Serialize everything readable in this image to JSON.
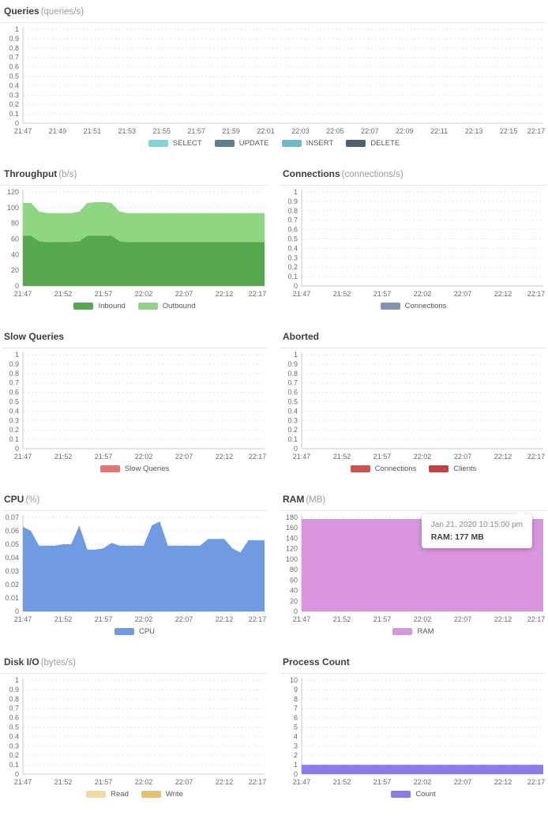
{
  "chart_data": [
    {
      "type": "area",
      "title": "Queries",
      "unit": "(queries/s)",
      "ylim": [
        0,
        1
      ],
      "yticks": [
        "0",
        "0.1",
        "0.2",
        "0.3",
        "0.4",
        "0.5",
        "0.6",
        "0.7",
        "0.8",
        "0.9",
        "1"
      ],
      "xticks": [
        "21:47",
        "21:49",
        "21:51",
        "21:53",
        "21:55",
        "21:57",
        "21:59",
        "22:01",
        "22:03",
        "22:05",
        "22:07",
        "22:09",
        "22:11",
        "22:13",
        "22:15",
        "22:17"
      ],
      "grid": true,
      "legend_position": "bottom",
      "stacked": true,
      "series": [
        {
          "name": "SELECT",
          "color": "#7fd4da",
          "values": []
        },
        {
          "name": "UPDATE",
          "color": "#5d8089",
          "values": []
        },
        {
          "name": "INSERT",
          "color": "#6cbac3",
          "values": []
        },
        {
          "name": "DELETE",
          "color": "#4c636d",
          "values": []
        }
      ]
    },
    {
      "type": "area",
      "title": "Throughput",
      "unit": "(b/s)",
      "ylim": [
        0,
        120
      ],
      "yticks": [
        "0",
        "20",
        "40",
        "60",
        "80",
        "100",
        "120"
      ],
      "xticks": [
        "21:47",
        "21:52",
        "21:57",
        "22:02",
        "22:07",
        "22:12",
        "22:17"
      ],
      "grid": true,
      "legend_position": "bottom",
      "stacked": true,
      "series": [
        {
          "name": "Inbound",
          "color": "#56a84e",
          "values": [
            64,
            64,
            57,
            56,
            56,
            56,
            56,
            57,
            64,
            64,
            64,
            64,
            57,
            56,
            56,
            56,
            56,
            56,
            56,
            56,
            56,
            56,
            56,
            56,
            56,
            56,
            56,
            56,
            56,
            56,
            56
          ]
        },
        {
          "name": "Outbound",
          "color": "#8ed681",
          "values": [
            42,
            42,
            38,
            37,
            37,
            37,
            37,
            38,
            42,
            43,
            43,
            42,
            38,
            37,
            37,
            37,
            37,
            37,
            37,
            37,
            37,
            37,
            37,
            37,
            37,
            37,
            37,
            37,
            37,
            37,
            37
          ]
        }
      ]
    },
    {
      "type": "area",
      "title": "Connections",
      "unit": "(connections/s)",
      "ylim": [
        0,
        1
      ],
      "yticks": [
        "0",
        "0.1",
        "0.2",
        "0.3",
        "0.4",
        "0.5",
        "0.6",
        "0.7",
        "0.8",
        "0.9",
        "1"
      ],
      "xticks": [
        "21:47",
        "21:52",
        "21:57",
        "22:02",
        "22:07",
        "22:12",
        "22:17"
      ],
      "grid": true,
      "legend_position": "bottom",
      "stacked": false,
      "series": [
        {
          "name": "Connections",
          "color": "#8594ae",
          "values": []
        }
      ]
    },
    {
      "type": "area",
      "title": "Slow Queries",
      "unit": "",
      "ylim": [
        0,
        1
      ],
      "yticks": [
        "0",
        "0.1",
        "0.2",
        "0.3",
        "0.4",
        "0.5",
        "0.6",
        "0.7",
        "0.8",
        "0.9",
        "1"
      ],
      "xticks": [
        "21:47",
        "21:52",
        "21:57",
        "22:02",
        "22:07",
        "22:12",
        "22:17"
      ],
      "grid": true,
      "legend_position": "bottom",
      "stacked": false,
      "series": [
        {
          "name": "Slow Queries",
          "color": "#e5736f",
          "values": []
        }
      ]
    },
    {
      "type": "area",
      "title": "Aborted",
      "unit": "",
      "ylim": [
        0,
        1
      ],
      "yticks": [
        "0",
        "0.1",
        "0.2",
        "0.3",
        "0.4",
        "0.5",
        "0.6",
        "0.7",
        "0.8",
        "0.9",
        "1"
      ],
      "xticks": [
        "21:47",
        "21:52",
        "21:57",
        "22:02",
        "22:07",
        "22:12",
        "22:17"
      ],
      "grid": true,
      "legend_position": "bottom",
      "stacked": false,
      "series": [
        {
          "name": "Connections",
          "color": "#d4504c",
          "values": []
        },
        {
          "name": "Clients",
          "color": "#c4403c",
          "values": []
        }
      ]
    },
    {
      "type": "area",
      "title": "CPU",
      "unit": "(%)",
      "ylim": [
        0,
        0.07
      ],
      "yticks": [
        "0",
        "0.01",
        "0.02",
        "0.03",
        "0.04",
        "0.05",
        "0.06",
        "0.07"
      ],
      "xticks": [
        "21:47",
        "21:52",
        "21:57",
        "22:02",
        "22:07",
        "22:12",
        "22:17"
      ],
      "grid": true,
      "legend_position": "bottom",
      "stacked": false,
      "series": [
        {
          "name": "CPU",
          "color": "#6e9be1",
          "values": [
            0.063,
            0.06,
            0.049,
            0.049,
            0.049,
            0.05,
            0.05,
            0.064,
            0.046,
            0.046,
            0.047,
            0.051,
            0.049,
            0.049,
            0.049,
            0.049,
            0.064,
            0.067,
            0.049,
            0.049,
            0.049,
            0.049,
            0.049,
            0.054,
            0.054,
            0.054,
            0.047,
            0.044,
            0.053,
            0.053,
            0.053
          ]
        }
      ]
    },
    {
      "type": "area",
      "title": "RAM",
      "unit": "(MB)",
      "ylim": [
        0,
        180
      ],
      "yticks": [
        "0",
        "20",
        "40",
        "60",
        "80",
        "100",
        "120",
        "140",
        "160",
        "180"
      ],
      "xticks": [
        "21:47",
        "21:52",
        "21:57",
        "22:02",
        "22:07",
        "22:12",
        "22:17"
      ],
      "grid": true,
      "legend_position": "bottom",
      "stacked": false,
      "series": [
        {
          "name": "RAM",
          "color": "#d795dd",
          "values": [
            177,
            177,
            177,
            177,
            177,
            177,
            177,
            177,
            177,
            177,
            177,
            177,
            177,
            177,
            177,
            177,
            177,
            177,
            177,
            177,
            177,
            177,
            177,
            177,
            177,
            177,
            177,
            177,
            177,
            177,
            177
          ]
        }
      ],
      "tooltip": {
        "line1": "Jan 21, 2020 10:15:00 pm",
        "line2": "RAM: 177 MB"
      }
    },
    {
      "type": "area",
      "title": "Disk I/O",
      "unit": "(bytes/s)",
      "ylim": [
        0,
        1
      ],
      "yticks": [
        "0",
        "0.1",
        "0.2",
        "0.3",
        "0.4",
        "0.5",
        "0.6",
        "0.7",
        "0.8",
        "0.9",
        "1"
      ],
      "xticks": [
        "21:47",
        "21:52",
        "21:57",
        "22:02",
        "22:07",
        "22:12",
        "22:17"
      ],
      "grid": true,
      "legend_position": "bottom",
      "stacked": false,
      "series": [
        {
          "name": "Read",
          "color": "#f2d9a2",
          "values": []
        },
        {
          "name": "Write",
          "color": "#eac06e",
          "values": []
        }
      ]
    },
    {
      "type": "area",
      "title": "Process Count",
      "unit": "",
      "ylim": [
        0,
        10
      ],
      "yticks": [
        "0",
        "1",
        "2",
        "3",
        "4",
        "5",
        "6",
        "7",
        "8",
        "9",
        "10"
      ],
      "xticks": [
        "21:47",
        "21:52",
        "21:57",
        "22:02",
        "22:07",
        "22:12",
        "22:17"
      ],
      "grid": true,
      "legend_position": "bottom",
      "stacked": false,
      "series": [
        {
          "name": "Count",
          "color": "#8b7ce9",
          "values": [
            1,
            1,
            1,
            1,
            1,
            1,
            1,
            1,
            1,
            1,
            1,
            1,
            1,
            1,
            1,
            1,
            1,
            1,
            1,
            1,
            1,
            1,
            1,
            1,
            1,
            1,
            1,
            1,
            1,
            1,
            1
          ]
        }
      ]
    }
  ],
  "colors": {
    "grid_line": "#e2e2e2",
    "axis_line": "#c9c9c9",
    "tick_label": "#6b6b6b"
  }
}
